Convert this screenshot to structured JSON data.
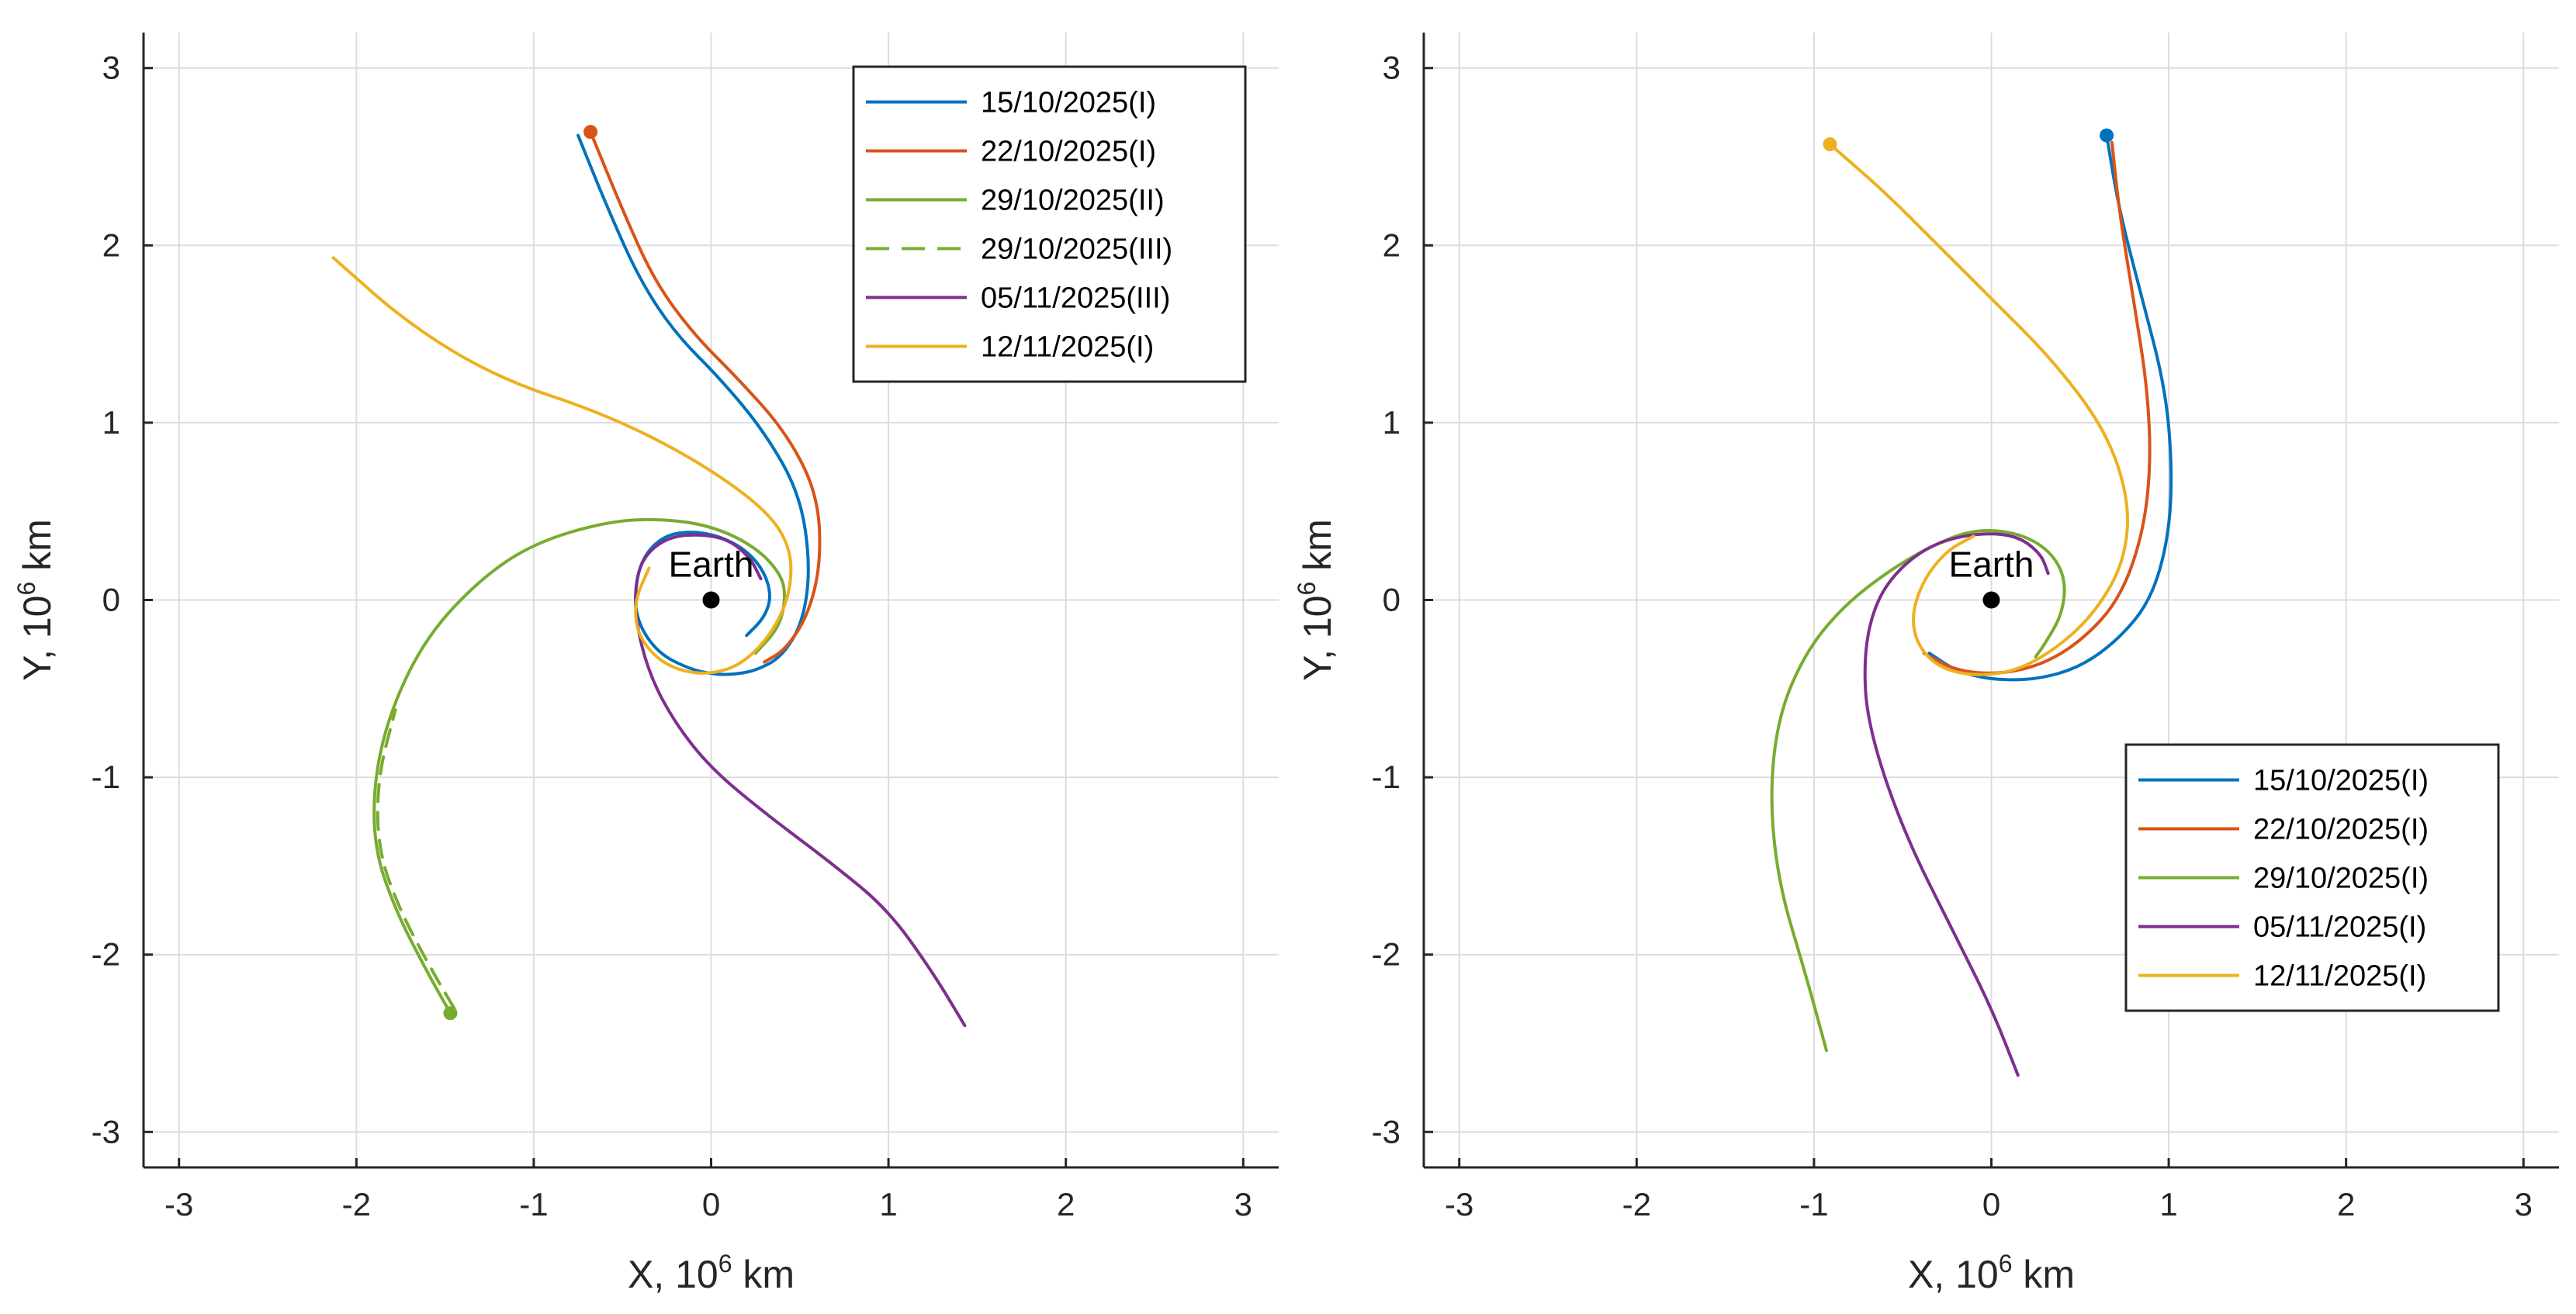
{
  "chart_data": [
    {
      "type": "line",
      "xlabel": "X, 10",
      "xlabel_exp": "6",
      "xlabel_unit": " km",
      "ylabel": "Y, 10",
      "ylabel_exp": "6",
      "ylabel_unit": " km",
      "xlim": [
        -3.2,
        3.2
      ],
      "ylim": [
        -3.2,
        3.2
      ],
      "xticks": [
        -3,
        -2,
        -1,
        0,
        1,
        2,
        3
      ],
      "yticks": [
        -3,
        -2,
        -1,
        0,
        1,
        2,
        3
      ],
      "grid": true,
      "legend_position": "top-right",
      "earth": {
        "label": "Earth",
        "x": 0,
        "y": 0
      },
      "series": [
        {
          "name": "15/10/2025(I)",
          "color": "#0072BD",
          "dash": false,
          "x": [
            -0.75,
            -0.58,
            -0.4,
            -0.2,
            0.05,
            0.3,
            0.5,
            0.56,
            0.52,
            0.4,
            0.25,
            0.12,
            0.02,
            -0.12,
            -0.3,
            -0.42,
            -0.43,
            -0.38,
            -0.27,
            -0.12,
            0.05,
            0.2,
            0.3,
            0.34,
            0.3,
            0.2
          ],
          "y": [
            2.62,
            2.2,
            1.8,
            1.5,
            1.25,
            0.95,
            0.6,
            0.2,
            -0.12,
            -0.32,
            -0.4,
            -0.42,
            -0.42,
            -0.39,
            -0.3,
            -0.12,
            0.08,
            0.25,
            0.36,
            0.39,
            0.36,
            0.28,
            0.16,
            0.02,
            -0.1,
            -0.2
          ]
        },
        {
          "name": "22/10/2025(I)",
          "color": "#D95319",
          "dash": false,
          "x": [
            -0.68,
            -0.5,
            -0.32,
            -0.1,
            0.15,
            0.42,
            0.6,
            0.62,
            0.55,
            0.42,
            0.3
          ],
          "y": [
            2.64,
            2.2,
            1.8,
            1.5,
            1.25,
            0.95,
            0.6,
            0.22,
            -0.08,
            -0.28,
            -0.35
          ]
        },
        {
          "name": "29/10/2025(II)",
          "color": "#77AC30",
          "dash": false,
          "x": [
            -1.47,
            -1.6,
            -1.78,
            -1.9,
            -1.9,
            -1.8,
            -1.6,
            -1.3,
            -1.0,
            -0.6,
            -0.3,
            0.0,
            0.25,
            0.4,
            0.42,
            0.38,
            0.25
          ],
          "y": [
            -2.33,
            -2.1,
            -1.75,
            -1.4,
            -1.0,
            -0.6,
            -0.2,
            0.12,
            0.32,
            0.44,
            0.46,
            0.42,
            0.3,
            0.14,
            0.0,
            -0.16,
            -0.3
          ]
        },
        {
          "name": "29/10/2025(III)",
          "color": "#77AC30",
          "dash": true,
          "x": [
            -1.45,
            -1.58,
            -1.76,
            -1.88,
            -1.88,
            -1.78
          ],
          "y": [
            -2.3,
            -2.08,
            -1.74,
            -1.4,
            -1.0,
            -0.62
          ]
        },
        {
          "name": "05/11/2025(III)",
          "color": "#7E2F8E",
          "dash": false,
          "x": [
            1.43,
            1.25,
            1.0,
            0.7,
            0.3,
            0.0,
            -0.2,
            -0.35,
            -0.43,
            -0.42,
            -0.35,
            -0.22,
            -0.05,
            0.1,
            0.22,
            0.28
          ],
          "y": [
            -2.4,
            -2.1,
            -1.75,
            -1.5,
            -1.2,
            -0.95,
            -0.7,
            -0.42,
            -0.1,
            0.15,
            0.28,
            0.36,
            0.37,
            0.34,
            0.24,
            0.12
          ]
        },
        {
          "name": "12/11/2025(I)",
          "color": "#EDB120",
          "dash": false,
          "x": [
            -2.13,
            -1.7,
            -1.2,
            -0.6,
            -0.1,
            0.3,
            0.45,
            0.45,
            0.35,
            0.18,
            0.0,
            -0.18,
            -0.32,
            -0.42,
            -0.43,
            -0.35
          ],
          "y": [
            1.93,
            1.55,
            1.25,
            1.05,
            0.8,
            0.52,
            0.3,
            0.05,
            -0.18,
            -0.36,
            -0.42,
            -0.4,
            -0.32,
            -0.18,
            0.0,
            0.18
          ]
        }
      ],
      "markers": [
        {
          "x": -0.68,
          "y": 2.64,
          "color": "#D95319"
        },
        {
          "x": -1.47,
          "y": -2.33,
          "color": "#77AC30"
        }
      ]
    },
    {
      "type": "line",
      "xlabel": "X, 10",
      "xlabel_exp": "6",
      "xlabel_unit": " km",
      "ylabel": "Y, 10",
      "ylabel_exp": "6",
      "ylabel_unit": " km",
      "xlim": [
        -3.2,
        3.2
      ],
      "ylim": [
        -3.2,
        3.2
      ],
      "xticks": [
        -3,
        -2,
        -1,
        0,
        1,
        2,
        3
      ],
      "yticks": [
        -3,
        -2,
        -1,
        0,
        1,
        2,
        3
      ],
      "grid": true,
      "legend_position": "bottom-right",
      "earth": {
        "label": "Earth",
        "x": 0,
        "y": 0
      },
      "series": [
        {
          "name": "15/10/2025(I)",
          "color": "#0072BD",
          "dash": false,
          "x": [
            0.65,
            0.72,
            0.85,
            0.98,
            1.02,
            1.0,
            0.9,
            0.72,
            0.5,
            0.25,
            0.0,
            -0.2,
            -0.35
          ],
          "y": [
            2.62,
            2.2,
            1.7,
            1.2,
            0.75,
            0.35,
            0.0,
            -0.22,
            -0.38,
            -0.45,
            -0.45,
            -0.4,
            -0.3
          ]
        },
        {
          "name": "22/10/2025(I)",
          "color": "#D95319",
          "dash": false,
          "x": [
            0.68,
            0.72,
            0.8,
            0.88,
            0.9,
            0.85,
            0.72,
            0.52,
            0.3,
            0.05,
            -0.2,
            -0.38
          ],
          "y": [
            2.58,
            2.2,
            1.7,
            1.2,
            0.75,
            0.35,
            0.0,
            -0.22,
            -0.36,
            -0.42,
            -0.4,
            -0.3
          ]
        },
        {
          "name": "29/10/2025(I)",
          "color": "#77AC30",
          "dash": false,
          "x": [
            -0.93,
            -1.05,
            -1.2,
            -1.25,
            -1.2,
            -1.05,
            -0.85,
            -0.6,
            -0.35,
            -0.1,
            0.15,
            0.33,
            0.42,
            0.4,
            0.3,
            0.25
          ],
          "y": [
            -2.54,
            -2.1,
            -1.6,
            -1.1,
            -0.65,
            -0.3,
            -0.05,
            0.15,
            0.3,
            0.4,
            0.38,
            0.28,
            0.12,
            -0.08,
            -0.25,
            -0.32
          ]
        },
        {
          "name": "05/11/2025(I)",
          "color": "#7E2F8E",
          "dash": false,
          "x": [
            0.15,
            0.0,
            -0.2,
            -0.5,
            -0.7,
            -0.72,
            -0.65,
            -0.5,
            -0.3,
            -0.05,
            0.15,
            0.28,
            0.32
          ],
          "y": [
            -2.68,
            -2.3,
            -1.9,
            -1.3,
            -0.7,
            -0.3,
            0.0,
            0.2,
            0.33,
            0.38,
            0.36,
            0.26,
            0.15
          ]
        },
        {
          "name": "12/11/2025(I)",
          "color": "#EDB120",
          "dash": false,
          "x": [
            -0.91,
            -0.6,
            -0.3,
            0.0,
            0.35,
            0.65,
            0.78,
            0.75,
            0.6,
            0.4,
            0.15,
            -0.1,
            -0.3,
            -0.42,
            -0.45,
            -0.38,
            -0.25,
            -0.1
          ],
          "y": [
            2.57,
            2.3,
            2.0,
            1.7,
            1.35,
            0.95,
            0.55,
            0.22,
            -0.05,
            -0.25,
            -0.4,
            -0.43,
            -0.38,
            -0.25,
            -0.08,
            0.12,
            0.28,
            0.36
          ]
        }
      ],
      "markers": [
        {
          "x": -0.91,
          "y": 2.57,
          "color": "#EDB120"
        },
        {
          "x": 0.65,
          "y": 2.62,
          "color": "#0072BD"
        }
      ]
    }
  ]
}
